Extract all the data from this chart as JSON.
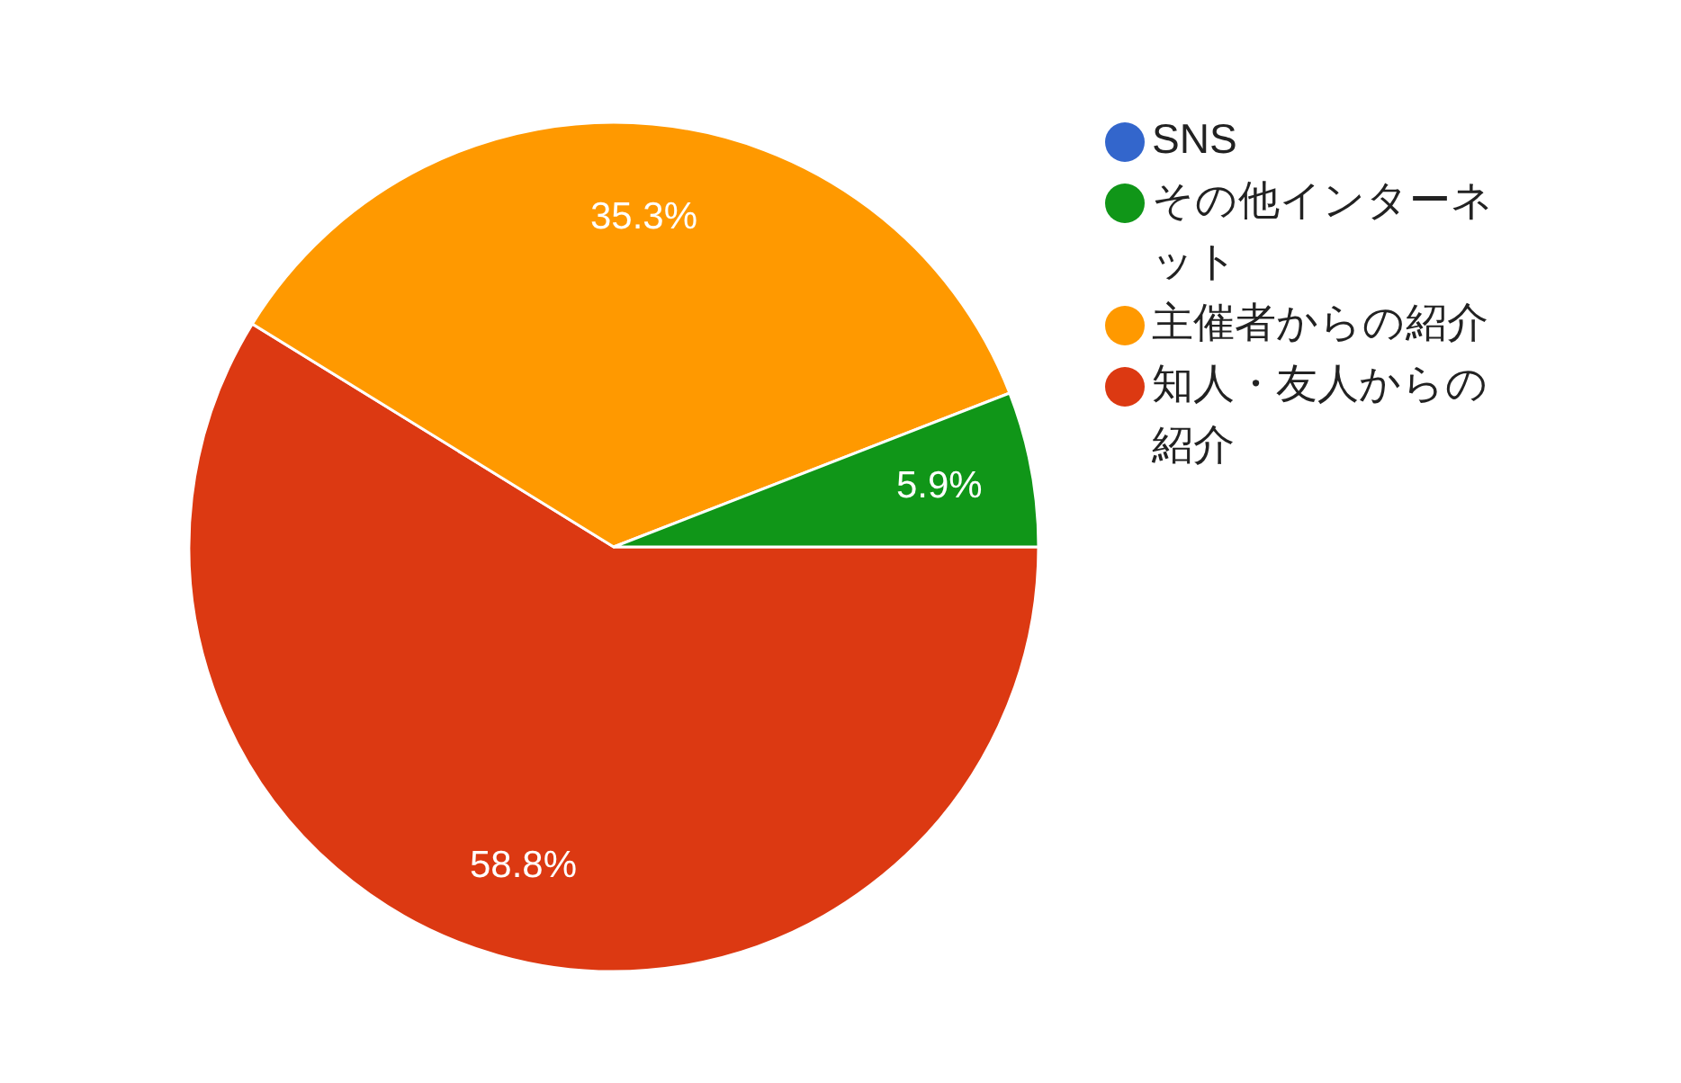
{
  "chart_data": {
    "type": "pie",
    "categories": [
      "SNS",
      "知人・友人からの紹介",
      "主催者からの紹介",
      "その他インターネット"
    ],
    "values": [
      0,
      58.8,
      35.3,
      5.9
    ],
    "colors": [
      "#3366cc",
      "#dc3912",
      "#ff9900",
      "#109618"
    ],
    "value_labels": [
      null,
      "58.8%",
      "35.3%",
      "5.9%"
    ],
    "legend": "top right"
  }
}
